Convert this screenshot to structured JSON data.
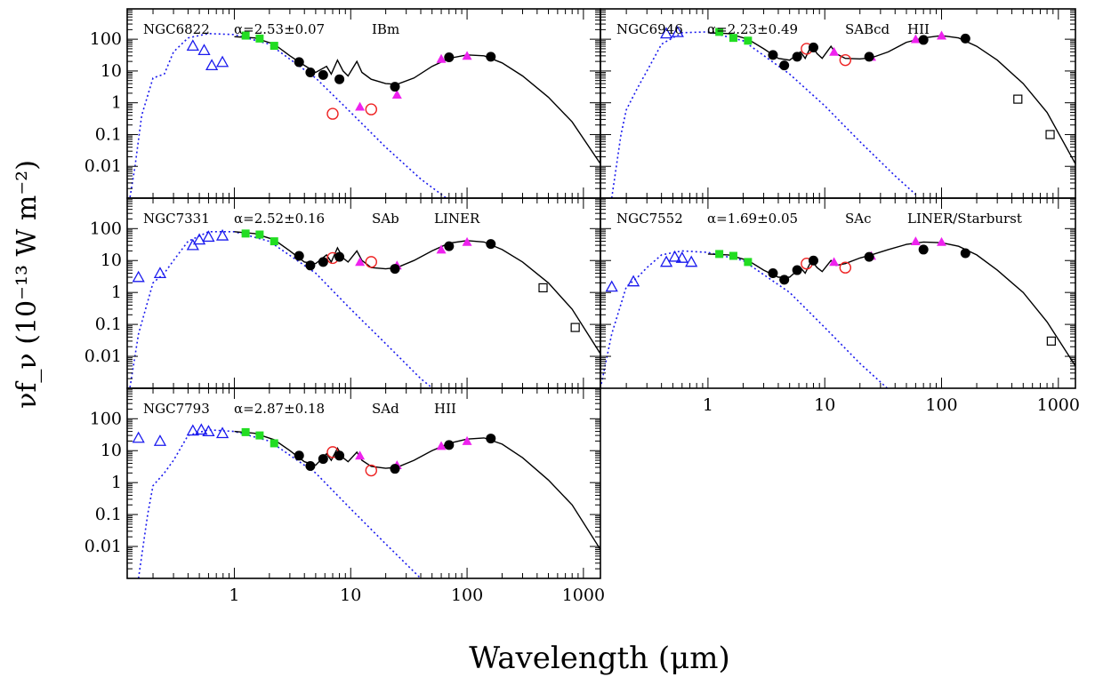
{
  "figure": {
    "ylabel": "νf_ν (10⁻¹³ W m⁻²)",
    "xlabel": "Wavelength (μm)"
  },
  "axes": {
    "xscale": "log",
    "yscale": "log",
    "xlim": [
      0.12,
      1400
    ],
    "ylim": [
      0.001,
      900
    ],
    "xticks": [
      1,
      10,
      100,
      1000
    ],
    "xtick_labels": [
      "1",
      "10",
      "100",
      "1000"
    ],
    "yticks": [
      0.01,
      0.1,
      1,
      10,
      100
    ],
    "ytick_labels": [
      "0.01",
      "0.1",
      "1",
      "10",
      "100"
    ]
  },
  "chart_data": [
    {
      "type": "scatter",
      "name": "NGC6822",
      "alpha": "α=2.53±0.07",
      "morph": "IBm",
      "nuclear": "",
      "opt": [
        [
          0.44,
          62
        ],
        [
          0.55,
          45
        ],
        [
          0.64,
          15
        ],
        [
          0.79,
          19
        ]
      ],
      "nir": [
        [
          1.25,
          130
        ],
        [
          1.65,
          105
        ],
        [
          2.2,
          62
        ]
      ],
      "mips": [
        [
          3.6,
          19
        ],
        [
          4.5,
          9
        ],
        [
          5.8,
          7.5
        ],
        [
          8.0,
          5.5
        ],
        [
          24,
          3.2
        ],
        [
          70,
          27
        ],
        [
          160,
          28
        ]
      ],
      "iras": [
        [
          12,
          0.75
        ],
        [
          25,
          1.8
        ],
        [
          60,
          24
        ],
        [
          100,
          30
        ]
      ],
      "red": [
        [
          7,
          0.45
        ],
        [
          15,
          0.62
        ]
      ],
      "sub": [],
      "curve": [
        [
          1.0,
          120
        ],
        [
          1.5,
          110
        ],
        [
          2.2,
          70
        ],
        [
          3.0,
          30
        ],
        [
          4.0,
          15
        ],
        [
          5.0,
          9
        ],
        [
          6.2,
          14
        ],
        [
          6.8,
          8
        ],
        [
          7.7,
          22
        ],
        [
          8.6,
          10
        ],
        [
          9.5,
          7
        ],
        [
          11.3,
          20
        ],
        [
          12.5,
          9
        ],
        [
          15,
          5.5
        ],
        [
          20,
          4
        ],
        [
          25,
          3.8
        ],
        [
          35,
          6
        ],
        [
          50,
          14
        ],
        [
          70,
          25
        ],
        [
          100,
          32
        ],
        [
          140,
          30
        ],
        [
          200,
          18
        ],
        [
          300,
          7
        ],
        [
          500,
          1.5
        ],
        [
          800,
          0.25
        ],
        [
          1400,
          0.012
        ]
      ],
      "stars": [
        [
          0.12,
          0.0003
        ],
        [
          0.14,
          0.01
        ],
        [
          0.16,
          0.4
        ],
        [
          0.2,
          6
        ],
        [
          0.25,
          8
        ],
        [
          0.3,
          40
        ],
        [
          0.4,
          110
        ],
        [
          0.6,
          150
        ],
        [
          1,
          140
        ],
        [
          2,
          70
        ],
        [
          5,
          6
        ],
        [
          10,
          0.5
        ],
        [
          20,
          0.04
        ],
        [
          40,
          0.004
        ],
        [
          80,
          0.0006
        ]
      ]
    },
    {
      "type": "scatter",
      "name": "NGC6946",
      "alpha": "α=2.23±0.49",
      "morph": "SABcd",
      "nuclear": "HII",
      "opt": [
        [
          0.44,
          150
        ],
        [
          0.55,
          165
        ]
      ],
      "nir": [
        [
          1.25,
          170
        ],
        [
          1.65,
          110
        ],
        [
          2.2,
          90
        ]
      ],
      "mips": [
        [
          3.6,
          32
        ],
        [
          4.5,
          15
        ],
        [
          5.8,
          28
        ],
        [
          8.0,
          55
        ],
        [
          24,
          28
        ],
        [
          70,
          95
        ],
        [
          160,
          105
        ]
      ],
      "iras": [
        [
          12,
          40
        ],
        [
          25,
          28
        ],
        [
          60,
          100
        ],
        [
          100,
          130
        ]
      ],
      "red": [
        [
          7,
          50
        ],
        [
          15,
          22
        ]
      ],
      "sub": [
        [
          450,
          1.3
        ],
        [
          850,
          0.1
        ]
      ],
      "curve": [
        [
          1.0,
          160
        ],
        [
          1.5,
          150
        ],
        [
          2.2,
          100
        ],
        [
          3.0,
          50
        ],
        [
          4.0,
          25
        ],
        [
          5.0,
          22
        ],
        [
          6.2,
          40
        ],
        [
          6.8,
          25
        ],
        [
          7.7,
          65
        ],
        [
          8.6,
          35
        ],
        [
          9.5,
          25
        ],
        [
          11.3,
          60
        ],
        [
          12.5,
          35
        ],
        [
          15,
          25
        ],
        [
          20,
          24
        ],
        [
          25,
          26
        ],
        [
          35,
          40
        ],
        [
          50,
          80
        ],
        [
          70,
          110
        ],
        [
          100,
          130
        ],
        [
          140,
          110
        ],
        [
          200,
          60
        ],
        [
          300,
          22
        ],
        [
          500,
          4
        ],
        [
          800,
          0.5
        ],
        [
          1400,
          0.012
        ]
      ],
      "stars": [
        [
          0.15,
          0.001
        ],
        [
          0.18,
          0.1
        ],
        [
          0.2,
          0.6
        ],
        [
          0.25,
          3
        ],
        [
          0.3,
          10
        ],
        [
          0.4,
          70
        ],
        [
          0.6,
          160
        ],
        [
          1,
          170
        ],
        [
          2,
          90
        ],
        [
          5,
          8
        ],
        [
          10,
          0.8
        ],
        [
          20,
          0.06
        ],
        [
          40,
          0.005
        ],
        [
          60,
          0.0013
        ]
      ]
    },
    {
      "type": "scatter",
      "name": "NGC7331",
      "alpha": "α=2.52±0.16",
      "morph": "SAb",
      "nuclear": "LINER",
      "opt": [
        [
          0.15,
          3
        ],
        [
          0.23,
          4
        ],
        [
          0.44,
          30
        ],
        [
          0.5,
          45
        ],
        [
          0.6,
          55
        ],
        [
          0.79,
          60
        ]
      ],
      "nir": [
        [
          1.25,
          70
        ],
        [
          1.65,
          65
        ],
        [
          2.2,
          40
        ]
      ],
      "mips": [
        [
          3.6,
          14
        ],
        [
          4.5,
          7
        ],
        [
          5.8,
          9
        ],
        [
          8.0,
          13
        ],
        [
          24,
          5.5
        ],
        [
          70,
          28
        ],
        [
          160,
          33
        ]
      ],
      "iras": [
        [
          12,
          9
        ],
        [
          25,
          7
        ],
        [
          60,
          22
        ],
        [
          100,
          38
        ]
      ],
      "red": [
        [
          7,
          12
        ],
        [
          15,
          9
        ]
      ],
      "sub": [
        [
          450,
          1.4
        ],
        [
          850,
          0.08
        ]
      ],
      "curve": [
        [
          1.0,
          80
        ],
        [
          1.5,
          70
        ],
        [
          2.2,
          45
        ],
        [
          3.0,
          20
        ],
        [
          4.0,
          9
        ],
        [
          5.0,
          8
        ],
        [
          6.2,
          15
        ],
        [
          6.8,
          9
        ],
        [
          7.7,
          25
        ],
        [
          8.6,
          12
        ],
        [
          9.5,
          9
        ],
        [
          11.3,
          20
        ],
        [
          12.5,
          10
        ],
        [
          15,
          6
        ],
        [
          20,
          5.5
        ],
        [
          25,
          6
        ],
        [
          35,
          10
        ],
        [
          50,
          20
        ],
        [
          70,
          35
        ],
        [
          100,
          42
        ],
        [
          140,
          38
        ],
        [
          200,
          22
        ],
        [
          300,
          9
        ],
        [
          500,
          2
        ],
        [
          800,
          0.3
        ],
        [
          1400,
          0.012
        ]
      ],
      "stars": [
        [
          0.12,
          0.0003
        ],
        [
          0.15,
          0.05
        ],
        [
          0.2,
          2
        ],
        [
          0.25,
          4
        ],
        [
          0.3,
          10
        ],
        [
          0.4,
          40
        ],
        [
          0.6,
          80
        ],
        [
          1,
          80
        ],
        [
          2,
          40
        ],
        [
          5,
          4
        ],
        [
          10,
          0.3
        ],
        [
          20,
          0.025
        ],
        [
          40,
          0.002
        ],
        [
          60,
          0.0006
        ]
      ]
    },
    {
      "type": "scatter",
      "name": "NGC7552",
      "alpha": "α=1.69±0.05",
      "morph": "SAc",
      "nuclear": "LINER/Starburst",
      "opt": [
        [
          0.15,
          1.5
        ],
        [
          0.23,
          2.2
        ],
        [
          0.44,
          9
        ],
        [
          0.52,
          13
        ],
        [
          0.6,
          12
        ],
        [
          0.72,
          9
        ]
      ],
      "nir": [
        [
          1.25,
          16
        ],
        [
          1.65,
          14
        ],
        [
          2.2,
          9
        ]
      ],
      "mips": [
        [
          3.6,
          4
        ],
        [
          4.5,
          2.5
        ],
        [
          5.8,
          5
        ],
        [
          8.0,
          10
        ],
        [
          24,
          13
        ],
        [
          70,
          22
        ],
        [
          160,
          17
        ]
      ],
      "iras": [
        [
          12,
          9
        ],
        [
          25,
          14
        ],
        [
          60,
          40
        ],
        [
          100,
          38
        ]
      ],
      "red": [
        [
          7,
          8
        ],
        [
          15,
          6
        ]
      ],
      "sub": [
        [
          870,
          0.03
        ]
      ],
      "curve": [
        [
          1.0,
          16
        ],
        [
          1.5,
          15
        ],
        [
          2.2,
          10
        ],
        [
          3.0,
          5
        ],
        [
          4.0,
          3
        ],
        [
          5.0,
          3
        ],
        [
          6.2,
          6
        ],
        [
          6.8,
          4
        ],
        [
          7.7,
          10
        ],
        [
          8.6,
          6
        ],
        [
          9.5,
          4.5
        ],
        [
          11.3,
          10
        ],
        [
          12.5,
          7
        ],
        [
          15,
          8
        ],
        [
          20,
          12
        ],
        [
          25,
          15
        ],
        [
          35,
          22
        ],
        [
          50,
          32
        ],
        [
          70,
          38
        ],
        [
          100,
          36
        ],
        [
          140,
          28
        ],
        [
          200,
          15
        ],
        [
          300,
          5
        ],
        [
          500,
          1
        ],
        [
          800,
          0.12
        ],
        [
          1400,
          0.005
        ]
      ],
      "stars": [
        [
          0.12,
          0.001
        ],
        [
          0.15,
          0.05
        ],
        [
          0.2,
          1.5
        ],
        [
          0.25,
          3
        ],
        [
          0.3,
          6
        ],
        [
          0.4,
          15
        ],
        [
          0.6,
          20
        ],
        [
          1,
          18
        ],
        [
          2,
          10
        ],
        [
          5,
          1
        ],
        [
          10,
          0.08
        ],
        [
          20,
          0.006
        ],
        [
          40,
          0.0006
        ]
      ]
    },
    {
      "type": "scatter",
      "name": "NGC7793",
      "alpha": "α=2.87±0.18",
      "morph": "SAd",
      "nuclear": "HII",
      "opt": [
        [
          0.15,
          25
        ],
        [
          0.23,
          20
        ],
        [
          0.44,
          42
        ],
        [
          0.52,
          45
        ],
        [
          0.6,
          40
        ],
        [
          0.79,
          35
        ]
      ],
      "nir": [
        [
          1.25,
          38
        ],
        [
          1.65,
          30
        ],
        [
          2.2,
          17
        ]
      ],
      "mips": [
        [
          3.6,
          7
        ],
        [
          4.5,
          3.3
        ],
        [
          5.8,
          5.5
        ],
        [
          8.0,
          7
        ],
        [
          24,
          2.7
        ],
        [
          70,
          15
        ],
        [
          160,
          24
        ]
      ],
      "iras": [
        [
          12,
          7
        ],
        [
          25,
          3.5
        ],
        [
          60,
          14
        ],
        [
          100,
          20
        ]
      ],
      "red": [
        [
          7,
          9
        ],
        [
          15,
          2.4
        ]
      ],
      "sub": [],
      "curve": [
        [
          1.0,
          40
        ],
        [
          1.5,
          35
        ],
        [
          2.2,
          22
        ],
        [
          3.0,
          10
        ],
        [
          4.0,
          4.5
        ],
        [
          5.0,
          3.5
        ],
        [
          6.2,
          8
        ],
        [
          6.8,
          5
        ],
        [
          7.7,
          12
        ],
        [
          8.6,
          6
        ],
        [
          9.5,
          4.5
        ],
        [
          11.3,
          9
        ],
        [
          12.5,
          5
        ],
        [
          15,
          3.2
        ],
        [
          20,
          2.8
        ],
        [
          25,
          3.0
        ],
        [
          35,
          5
        ],
        [
          50,
          10
        ],
        [
          70,
          17
        ],
        [
          100,
          23
        ],
        [
          140,
          25
        ],
        [
          200,
          16
        ],
        [
          300,
          6
        ],
        [
          500,
          1.2
        ],
        [
          800,
          0.2
        ],
        [
          1400,
          0.008
        ]
      ],
      "stars": [
        [
          0.15,
          0.001
        ],
        [
          0.18,
          0.1
        ],
        [
          0.2,
          0.8
        ],
        [
          0.25,
          2
        ],
        [
          0.3,
          5
        ],
        [
          0.4,
          30
        ],
        [
          0.6,
          45
        ],
        [
          1,
          40
        ],
        [
          2,
          20
        ],
        [
          5,
          2
        ],
        [
          10,
          0.15
        ],
        [
          20,
          0.012
        ],
        [
          40,
          0.001
        ]
      ]
    }
  ]
}
